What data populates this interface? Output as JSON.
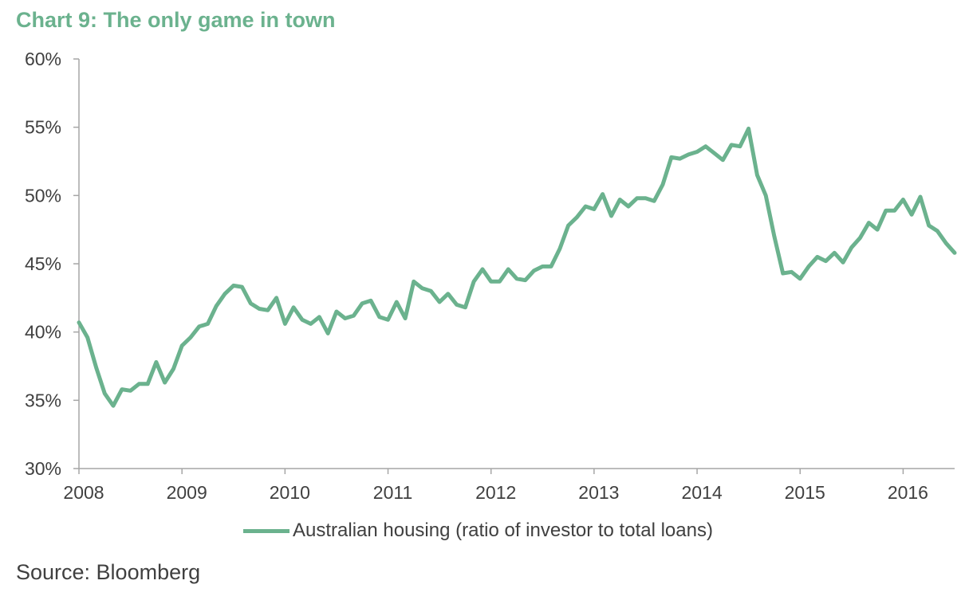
{
  "chart_data": {
    "type": "line",
    "title": "Chart 9: The only game in town",
    "xlabel": "",
    "ylabel": "",
    "xlim": [
      2008.0,
      2016.5
    ],
    "ylim": [
      30,
      60
    ],
    "y_ticks": [
      "30%",
      "35%",
      "40%",
      "45%",
      "50%",
      "55%",
      "60%"
    ],
    "y_tick_values": [
      30,
      35,
      40,
      45,
      50,
      55,
      60
    ],
    "x_ticks": [
      "2008",
      "2009",
      "2010",
      "2011",
      "2012",
      "2013",
      "2014",
      "2015",
      "2016"
    ],
    "x_tick_values": [
      2008,
      2009,
      2010,
      2011,
      2012,
      2013,
      2014,
      2015,
      2016
    ],
    "grid": false,
    "legend_position": "bottom",
    "series": [
      {
        "name": "Australian housing (ratio of investor to total loans)",
        "color": "#6bb28e",
        "x": [
          2008.0,
          2008.083,
          2008.167,
          2008.25,
          2008.333,
          2008.417,
          2008.5,
          2008.583,
          2008.667,
          2008.75,
          2008.833,
          2008.917,
          2009.0,
          2009.083,
          2009.167,
          2009.25,
          2009.333,
          2009.417,
          2009.5,
          2009.583,
          2009.667,
          2009.75,
          2009.833,
          2009.917,
          2010.0,
          2010.083,
          2010.167,
          2010.25,
          2010.333,
          2010.417,
          2010.5,
          2010.583,
          2010.667,
          2010.75,
          2010.833,
          2010.917,
          2011.0,
          2011.083,
          2011.167,
          2011.25,
          2011.333,
          2011.417,
          2011.5,
          2011.583,
          2011.667,
          2011.75,
          2011.833,
          2011.917,
          2012.0,
          2012.083,
          2012.167,
          2012.25,
          2012.333,
          2012.417,
          2012.5,
          2012.583,
          2012.667,
          2012.75,
          2012.833,
          2012.917,
          2013.0,
          2013.083,
          2013.167,
          2013.25,
          2013.333,
          2013.417,
          2013.5,
          2013.583,
          2013.667,
          2013.75,
          2013.833,
          2013.917,
          2014.0,
          2014.083,
          2014.167,
          2014.25,
          2014.333,
          2014.417,
          2014.5,
          2014.583,
          2014.667,
          2014.75,
          2014.833,
          2014.917,
          2015.0,
          2015.083,
          2015.167,
          2015.25,
          2015.333,
          2015.417,
          2015.5,
          2015.583,
          2015.667,
          2015.75,
          2015.833,
          2015.917,
          2016.0,
          2016.083,
          2016.167,
          2016.25,
          2016.333,
          2016.417,
          2016.5
        ],
        "values": [
          40.7,
          39.6,
          37.4,
          35.5,
          34.6,
          35.8,
          35.7,
          36.2,
          36.2,
          37.8,
          36.3,
          37.3,
          39.0,
          39.6,
          40.4,
          40.6,
          41.9,
          42.8,
          43.4,
          43.3,
          42.1,
          41.7,
          41.6,
          42.5,
          40.6,
          41.8,
          40.9,
          40.6,
          41.1,
          39.9,
          41.5,
          41.0,
          41.2,
          42.1,
          42.3,
          41.1,
          40.9,
          42.2,
          41.0,
          43.7,
          43.2,
          43.0,
          42.2,
          42.8,
          42.0,
          41.8,
          43.7,
          44.6,
          43.7,
          43.7,
          44.6,
          43.9,
          43.8,
          44.5,
          44.8,
          44.8,
          46.1,
          47.8,
          48.4,
          49.2,
          49.0,
          50.1,
          48.5,
          49.7,
          49.2,
          49.8,
          49.8,
          49.6,
          50.8,
          52.8,
          52.7,
          53.0,
          53.2,
          53.6,
          53.1,
          52.6,
          53.7,
          53.6,
          54.9,
          51.5,
          50.0,
          47.0,
          44.3,
          44.4,
          43.9,
          44.8,
          45.5,
          45.2,
          45.8,
          45.1,
          46.2,
          46.9,
          48.0,
          47.5,
          48.9,
          48.9,
          49.7,
          48.6,
          49.9,
          47.8,
          47.4,
          46.5,
          45.8
        ]
      }
    ]
  },
  "source_note": "Source: Bloomberg"
}
